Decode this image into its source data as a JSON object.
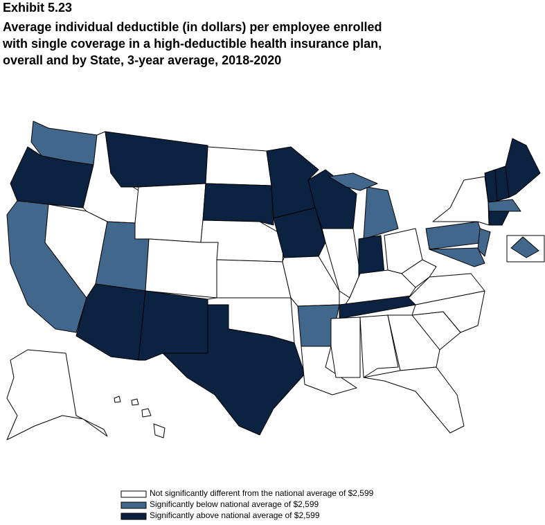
{
  "header": {
    "exhibit": "Exhibit 5.23",
    "title": [
      "Average individual deductible (in dollars) per employee enrolled",
      "with single coverage in a high-deductible health insurance plan,",
      "overall and by State, 3-year average, 2018-2020"
    ]
  },
  "legend": [
    {
      "label": "Not significantly different from the national average of $2,599",
      "color": "#ffffff"
    },
    {
      "label": "Significantly below national average of $2,599",
      "color": "#41678c"
    },
    {
      "label": "Significantly above national average of $2,599",
      "color": "#0b2340"
    }
  ]
}
